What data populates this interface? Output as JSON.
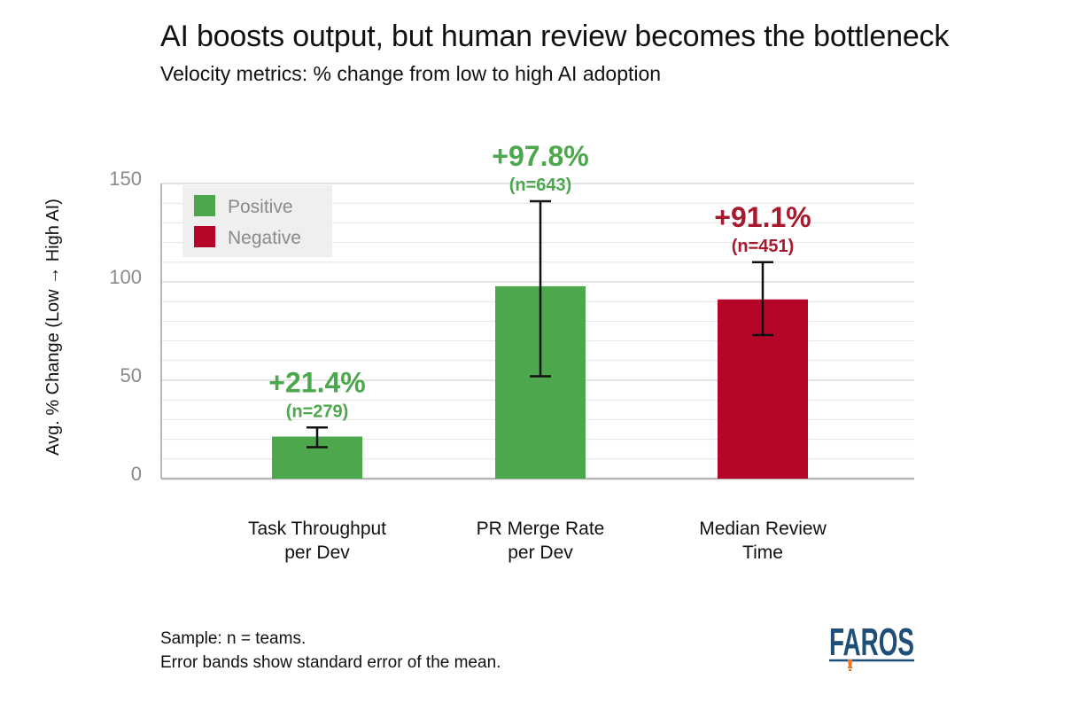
{
  "chart_data": {
    "type": "bar",
    "title": "AI boosts output, but human review becomes the bottleneck",
    "subtitle": "Velocity metrics: % change from low to high AI adoption",
    "ylabel": "Avg. % Change (Low → High AI)",
    "xlabel": "",
    "ylim": [
      0,
      150
    ],
    "yticks": [
      0,
      50,
      100,
      150
    ],
    "grid": true,
    "legend": {
      "placement": "top-left",
      "entries": [
        {
          "label": "Positive",
          "color": "#4ca74d"
        },
        {
          "label": "Negative",
          "color": "#b5062a"
        }
      ]
    },
    "categories": [
      [
        "Task Throughput",
        "per Dev"
      ],
      [
        "PR Merge Rate",
        "per Dev"
      ],
      [
        "Median Review",
        "Time"
      ]
    ],
    "bars": [
      {
        "value": 21.4,
        "label": "+21.4%",
        "n_label": "(n=279)",
        "err_low": 16,
        "err_high": 26,
        "sentiment": "Positive"
      },
      {
        "value": 97.8,
        "label": "+97.8%",
        "n_label": "(n=643)",
        "err_low": 52,
        "err_high": 141,
        "sentiment": "Positive"
      },
      {
        "value": 91.1,
        "label": "+91.1%",
        "n_label": "(n=451)",
        "err_low": 73,
        "err_high": 110,
        "sentiment": "Negative"
      }
    ]
  },
  "colors": {
    "positive": "#4ca74d",
    "negative": "#b5062a",
    "positive_text": "#4ca74d",
    "negative_text": "#a6192e",
    "grid": "#e4e4e4",
    "axis": "#b8b8b8",
    "tick_text": "#8a8a8a",
    "legend_bg": "#efefef"
  },
  "footnotes": {
    "line1": "Sample: n = teams.",
    "line2": "Error bands show standard error of the mean."
  },
  "logo": {
    "text": "FAROS",
    "color_text": "#1f4e79",
    "color_accent": "#e87722"
  }
}
